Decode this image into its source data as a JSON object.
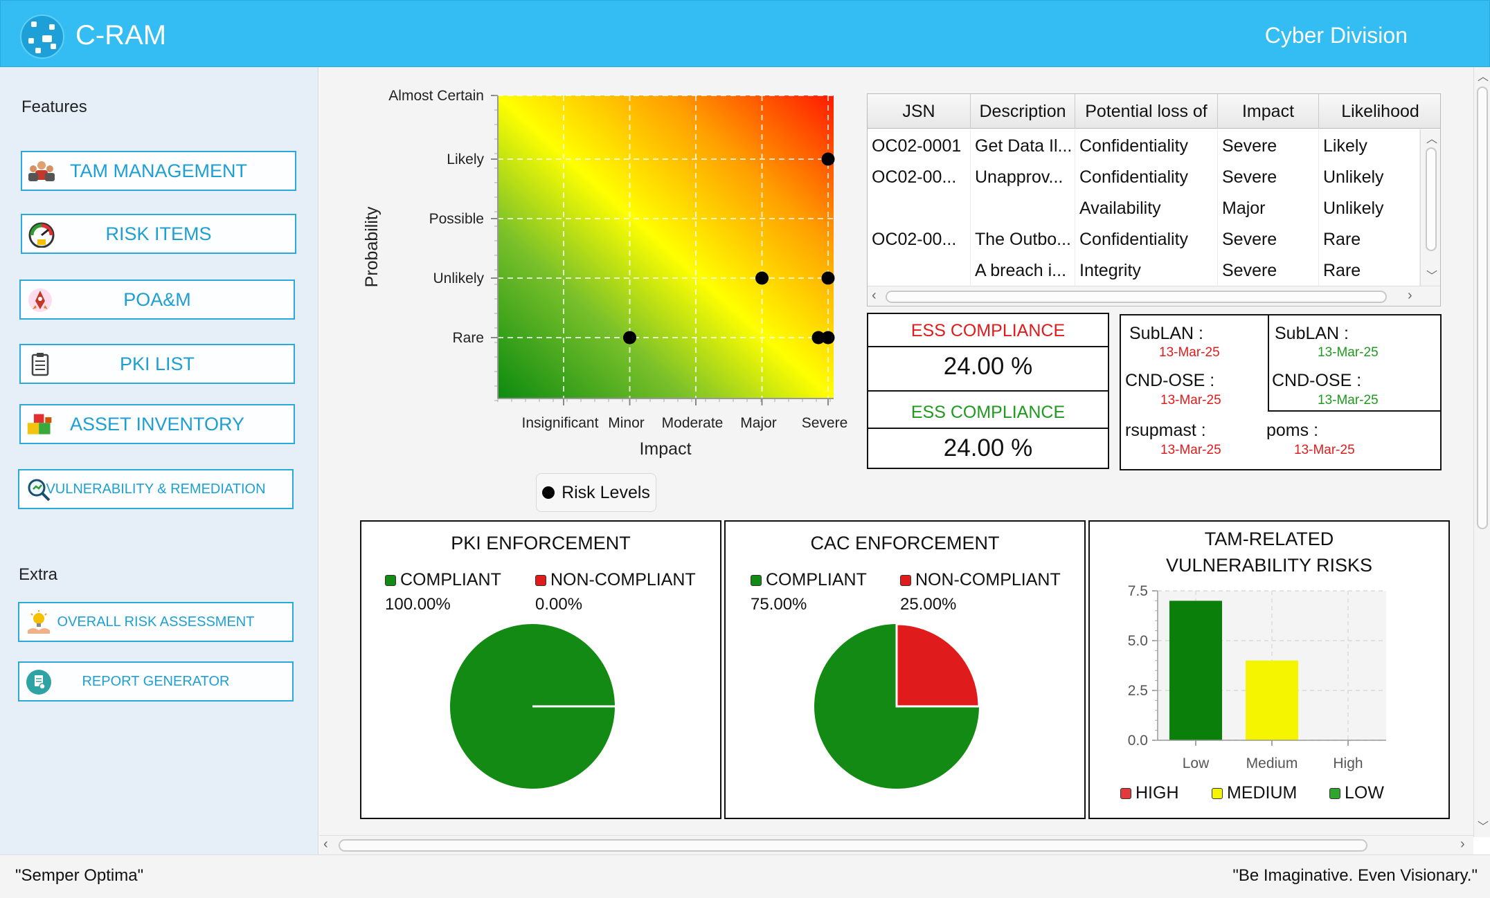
{
  "header": {
    "app_title": "C-RAM",
    "division": "Cyber Division"
  },
  "sidebar": {
    "features_label": "Features",
    "extra_label": "Extra",
    "items": [
      {
        "label": "TAM MANAGEMENT",
        "icon": "team-icon"
      },
      {
        "label": "RISK ITEMS",
        "icon": "gauge-icon"
      },
      {
        "label": "POA&M",
        "icon": "rocket-icon"
      },
      {
        "label": "PKI LIST",
        "icon": "clipboard-icon"
      },
      {
        "label": "ASSET INVENTORY",
        "icon": "boxes-icon"
      },
      {
        "label": "VULNERABILITY & REMEDIATION",
        "icon": "magnifier-icon"
      }
    ],
    "extra_items": [
      {
        "label": "OVERALL RISK ASSESSMENT",
        "icon": "lightbulb-hand-icon"
      },
      {
        "label": "REPORT GENERATOR",
        "icon": "document-icon"
      }
    ]
  },
  "chart_data": [
    {
      "type": "scatter",
      "title": "",
      "xlabel": "Impact",
      "ylabel": "Probability",
      "x_categories": [
        "Insignificant",
        "Minor",
        "Moderate",
        "Major",
        "Severe"
      ],
      "y_categories": [
        "Rare",
        "Unlikely",
        "Possible",
        "Likely",
        "Almost Certain"
      ],
      "grid": true,
      "legend": [
        "Risk Levels"
      ],
      "points": [
        {
          "x": "Severe",
          "y": "Likely"
        },
        {
          "x": "Major",
          "y": "Unlikely"
        },
        {
          "x": "Severe",
          "y": "Unlikely"
        },
        {
          "x": "Minor",
          "y": "Rare"
        },
        {
          "x": "Severe",
          "y": "Rare"
        },
        {
          "x": "Severe",
          "y": "Rare"
        }
      ]
    },
    {
      "type": "pie",
      "title": "PKI ENFORCEMENT",
      "legend_placement": "top",
      "slices": [
        {
          "label": "COMPLIANT",
          "value": 100.0,
          "display": "100.00%",
          "color": "#138a13"
        },
        {
          "label": "NON-COMPLIANT",
          "value": 0.0,
          "display": "0.00%",
          "color": "#e01b1b"
        }
      ]
    },
    {
      "type": "pie",
      "title": "CAC ENFORCEMENT",
      "legend_placement": "top",
      "slices": [
        {
          "label": "COMPLIANT",
          "value": 75.0,
          "display": "75.00%",
          "color": "#138a13"
        },
        {
          "label": "NON-COMPLIANT",
          "value": 25.0,
          "display": "25.00%",
          "color": "#e01b1b"
        }
      ]
    },
    {
      "type": "bar",
      "title_line1": "TAM-RELATED",
      "title_line2": "VULNERABILITY RISKS",
      "categories": [
        "Low",
        "Medium",
        "High"
      ],
      "values": [
        7.0,
        4.0,
        0.0
      ],
      "colors": [
        "#0a800a",
        "#f5f500",
        "#e23b3b"
      ],
      "ylim": [
        0,
        7.5
      ],
      "yticks": [
        "0.0",
        "2.5",
        "5.0",
        "7.5"
      ],
      "legend_placement": "bottom",
      "legend": [
        {
          "label": "HIGH",
          "color": "#e23b3b"
        },
        {
          "label": "MEDIUM",
          "color": "#f5f500"
        },
        {
          "label": "LOW",
          "color": "#2fa52f"
        }
      ]
    }
  ],
  "risk_table": {
    "columns": [
      "JSN",
      "Description",
      "Potential loss of",
      "Impact",
      "Likelihood"
    ],
    "rows": [
      [
        "OC02-0001",
        "Get Data Il...",
        "Confidentiality",
        "Severe",
        "Likely"
      ],
      [
        "OC02-00...",
        "Unapprov...",
        "Confidentiality",
        "Severe",
        "Unlikely"
      ],
      [
        "",
        "",
        "Availability",
        "Major",
        "Unlikely"
      ],
      [
        "OC02-00...",
        "The Outbo...",
        "Confidentiality",
        "Severe",
        "Rare"
      ],
      [
        "",
        "A breach i...",
        "Integrity",
        "Severe",
        "Rare"
      ]
    ]
  },
  "compliance": {
    "items": [
      {
        "label": "ESS COMPLIANCE",
        "value": "24.00 %",
        "color": "#e01b1b"
      },
      {
        "label": "ESS COMPLIANCE",
        "value": "24.00 %",
        "color": "#1e9a1e"
      }
    ]
  },
  "status": {
    "left": [
      {
        "label": "SubLAN :",
        "date": "13-Mar-25",
        "date_color": "#e01b1b"
      },
      {
        "label": "CND-OSE :",
        "date": "13-Mar-25",
        "date_color": "#e01b1b"
      },
      {
        "label": "rsupmast :",
        "date": "13-Mar-25",
        "date_color": "#e01b1b"
      }
    ],
    "right": [
      {
        "label": "SubLAN :",
        "date": "13-Mar-25",
        "date_color": "#1e9a1e"
      },
      {
        "label": "CND-OSE :",
        "date": "13-Mar-25",
        "date_color": "#1e9a1e"
      },
      {
        "label": "poms :",
        "date": "13-Mar-25",
        "date_color": "#e01b1b"
      }
    ]
  },
  "footer": {
    "left": "\"Semper Optima\"",
    "right": "\"Be Imaginative. Even Visionary.\""
  }
}
